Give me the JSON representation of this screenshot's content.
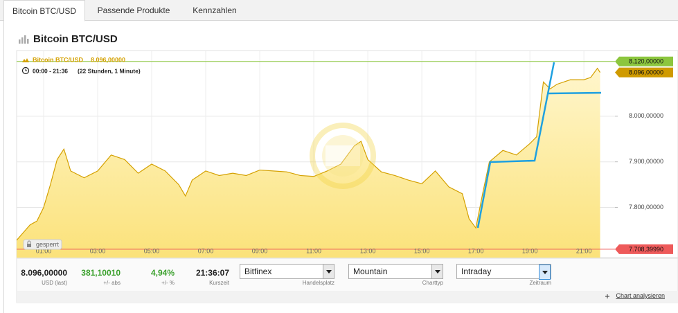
{
  "tabs": [
    "Bitcoin BTC/USD",
    "Passende Produkte",
    "Kennzahlen"
  ],
  "header": {
    "title": "Bitcoin BTC/USD"
  },
  "chart_data": {
    "type": "area",
    "legend_value": "8.096,00000",
    "period": "00:00 - 21:36",
    "duration": "(22 Stunden, 1 Minute)",
    "locked_label": "gesperrt",
    "xlim": [
      0,
      22.15
    ],
    "xticks": [
      {
        "value": 1,
        "label": "01:00"
      },
      {
        "value": 3,
        "label": "03:00"
      },
      {
        "value": 5,
        "label": "05:00"
      },
      {
        "value": 7,
        "label": "07:00"
      },
      {
        "value": 9,
        "label": "09:00"
      },
      {
        "value": 11,
        "label": "11:00"
      },
      {
        "value": 13,
        "label": "13:00"
      },
      {
        "value": 15,
        "label": "15:00"
      },
      {
        "value": 17,
        "label": "17:00"
      },
      {
        "value": 19,
        "label": "19:00"
      },
      {
        "value": 21,
        "label": "21:00"
      }
    ],
    "ylim": [
      7690,
      8144
    ],
    "yticks": [
      {
        "value": 7800,
        "label": "7.800,00000"
      },
      {
        "value": 7900,
        "label": "7.900,00000"
      },
      {
        "value": 8000,
        "label": "8.000,00000"
      }
    ],
    "grid": true,
    "series": [
      {
        "name": "Bitcoin BTC/USD",
        "color": "#d4a000",
        "x": [
          0,
          0.25,
          0.5,
          0.75,
          1,
          1.25,
          1.5,
          1.75,
          2,
          2.5,
          3,
          3.5,
          4,
          4.5,
          5,
          5.5,
          6,
          6.25,
          6.5,
          7,
          7.5,
          8,
          8.5,
          9,
          9.5,
          10,
          10.5,
          11,
          11.5,
          12,
          12.5,
          12.75,
          13,
          13.5,
          14,
          14.5,
          15,
          15.5,
          16,
          16.5,
          16.75,
          17,
          17.25,
          17.5,
          18,
          18.5,
          19,
          19.25,
          19.5,
          19.75,
          20,
          20.5,
          21,
          21.25,
          21.5,
          21.6
        ],
        "values": [
          7728,
          7745,
          7762,
          7770,
          7800,
          7850,
          7905,
          7928,
          7880,
          7865,
          7880,
          7915,
          7905,
          7875,
          7895,
          7880,
          7850,
          7825,
          7860,
          7880,
          7870,
          7875,
          7870,
          7882,
          7880,
          7878,
          7870,
          7868,
          7880,
          7895,
          7935,
          7945,
          7905,
          7878,
          7870,
          7860,
          7852,
          7880,
          7845,
          7830,
          7775,
          7755,
          7830,
          7900,
          7925,
          7915,
          7940,
          7955,
          8075,
          8060,
          8070,
          8080,
          8080,
          8085,
          8105,
          8096
        ]
      }
    ],
    "reference_lines": [
      {
        "value": 8120,
        "label": "8.120,00000",
        "color": "#8cc63e",
        "line": true
      },
      {
        "value": 8096,
        "label": "8.096,00000",
        "color": "#cf9a00",
        "line": false
      },
      {
        "value": 7708.3999,
        "label": "7.708,39990",
        "color": "#ee5a5a",
        "line": true
      }
    ]
  },
  "info": [
    {
      "value": "8.096,00000",
      "label": "USD (last)",
      "color": "#222"
    },
    {
      "value": "381,10010",
      "label": "+/- abs",
      "color": "#3aa02c"
    },
    {
      "value": "4,94%",
      "label": "+/- %",
      "color": "#3aa02c"
    },
    {
      "value": "21:36:07",
      "label": "Kurszeit",
      "color": "#222"
    }
  ],
  "selectors": [
    {
      "value": "Bitfinex",
      "label": "Handelsplatz"
    },
    {
      "value": "Mountain",
      "label": "Charttyp"
    },
    {
      "value": "Intraday",
      "label": "Zeitraum"
    }
  ],
  "footer": {
    "link": "Chart analysieren"
  }
}
